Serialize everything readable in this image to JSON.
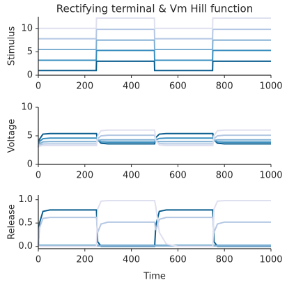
{
  "chart_data": [
    {
      "type": "line",
      "title": "Rectifying terminal & Vm Hill function",
      "ylabel": "Stimulus",
      "x": [
        0,
        5,
        20,
        50,
        100,
        249,
        250,
        255,
        270,
        300,
        350,
        499,
        500,
        505,
        520,
        550,
        600,
        749,
        750,
        755,
        770,
        800,
        850,
        1000
      ],
      "xlim": [
        0,
        1000
      ],
      "xticks": [
        0,
        200,
        400,
        600,
        800,
        1000
      ],
      "ylim": [
        0,
        12.5
      ],
      "yticks": [
        0,
        5,
        10
      ],
      "series": [
        {
          "color": "#0a5d8f",
          "values": [
            1,
            1,
            1,
            1,
            1,
            1,
            3,
            3,
            3,
            3,
            3,
            3,
            1,
            1,
            1,
            1,
            1,
            1,
            3,
            3,
            3,
            3,
            3,
            3
          ]
        },
        {
          "color": "#3a8fc0",
          "values": [
            3.2,
            3.2,
            3.2,
            3.2,
            3.2,
            3.2,
            5.3,
            5.3,
            5.3,
            5.3,
            5.3,
            5.3,
            3.2,
            3.2,
            3.2,
            3.2,
            3.2,
            3.2,
            5.3,
            5.3,
            5.3,
            5.3,
            5.3,
            5.3
          ]
        },
        {
          "color": "#7fafd3",
          "values": [
            5.5,
            5.5,
            5.5,
            5.5,
            5.5,
            5.5,
            7.5,
            7.5,
            7.5,
            7.5,
            7.5,
            7.5,
            5.5,
            5.5,
            5.5,
            5.5,
            5.5,
            5.5,
            7.5,
            7.5,
            7.5,
            7.5,
            7.5,
            7.5
          ]
        },
        {
          "color": "#b4c7e3",
          "values": [
            7.8,
            7.8,
            7.8,
            7.8,
            7.8,
            7.8,
            9.8,
            9.8,
            9.8,
            9.8,
            9.8,
            9.8,
            7.8,
            7.8,
            7.8,
            7.8,
            7.8,
            7.8,
            9.8,
            9.8,
            9.8,
            9.8,
            9.8,
            9.8
          ]
        },
        {
          "color": "#dfe0ef",
          "values": [
            10,
            10,
            10,
            10,
            10,
            10,
            12.2,
            12.2,
            12.2,
            12.2,
            12.2,
            12.2,
            10,
            10,
            10,
            10,
            10,
            10,
            12.2,
            12.2,
            12.2,
            12.2,
            12.2,
            12.2
          ]
        }
      ]
    },
    {
      "type": "line",
      "ylabel": "Voltage",
      "x": [
        0,
        5,
        20,
        50,
        100,
        249,
        250,
        255,
        270,
        300,
        350,
        499,
        500,
        505,
        520,
        550,
        600,
        749,
        750,
        755,
        770,
        800,
        850,
        1000
      ],
      "xlim": [
        0,
        1000
      ],
      "xticks": [
        0,
        200,
        400,
        600,
        800,
        1000
      ],
      "ylim": [
        0,
        10
      ],
      "yticks": [
        0,
        5,
        10
      ],
      "series": [
        {
          "color": "#0a5d8f",
          "values": [
            3.0,
            4.4,
            5.3,
            5.4,
            5.4,
            5.4,
            5.4,
            4.3,
            3.7,
            3.6,
            3.6,
            3.6,
            3.6,
            4.7,
            5.3,
            5.4,
            5.4,
            5.4,
            5.4,
            4.3,
            3.7,
            3.6,
            3.6,
            3.6
          ]
        },
        {
          "color": "#3a8fc0",
          "values": [
            3.0,
            4.0,
            4.5,
            4.6,
            4.6,
            4.6,
            4.6,
            4.2,
            3.95,
            3.9,
            3.9,
            3.9,
            3.9,
            4.3,
            4.55,
            4.6,
            4.6,
            4.6,
            4.6,
            4.2,
            3.95,
            3.9,
            3.9,
            3.9
          ]
        },
        {
          "color": "#7fafd3",
          "values": [
            3.0,
            3.6,
            3.95,
            4.0,
            4.0,
            4.0,
            4.0,
            4.2,
            4.3,
            4.3,
            4.3,
            4.3,
            4.3,
            4.1,
            4.0,
            4.0,
            4.0,
            4.0,
            4.0,
            4.2,
            4.3,
            4.3,
            4.3,
            4.3
          ]
        },
        {
          "color": "#b4c7e3",
          "values": [
            3.0,
            3.4,
            3.58,
            3.6,
            3.6,
            3.6,
            3.6,
            4.5,
            5.0,
            5.1,
            5.1,
            5.1,
            5.1,
            4.1,
            3.65,
            3.6,
            3.6,
            3.6,
            3.6,
            4.5,
            5.0,
            5.1,
            5.1,
            5.1
          ]
        },
        {
          "color": "#dfe0ef",
          "values": [
            3.0,
            3.2,
            3.3,
            3.3,
            3.3,
            3.3,
            3.3,
            5.0,
            5.9,
            6.0,
            6.0,
            6.0,
            6.0,
            4.2,
            3.4,
            3.3,
            3.3,
            3.3,
            3.3,
            5.0,
            5.9,
            6.0,
            6.0,
            6.0
          ]
        }
      ]
    },
    {
      "type": "line",
      "ylabel": "Release",
      "xlabel": "Time",
      "x": [
        0,
        5,
        20,
        50,
        100,
        249,
        250,
        255,
        270,
        300,
        350,
        499,
        500,
        505,
        520,
        550,
        600,
        749,
        750,
        755,
        770,
        800,
        850,
        1000
      ],
      "xlim": [
        0,
        1000
      ],
      "xticks": [
        0,
        200,
        400,
        600,
        800,
        1000
      ],
      "ylim": [
        -0.05,
        1.1
      ],
      "yticks": [
        {
          "value": 0,
          "label": "0.0"
        },
        {
          "value": 0.5,
          "label": "0.5"
        },
        {
          "value": 1,
          "label": "1.0"
        }
      ],
      "series": [
        {
          "color": "#0a5d8f",
          "values": [
            0,
            0.5,
            0.75,
            0.78,
            0.78,
            0.78,
            0.78,
            0.1,
            0,
            0,
            0,
            0,
            0,
            0.45,
            0.75,
            0.78,
            0.78,
            0.78,
            0.78,
            0.1,
            0,
            0,
            0,
            0
          ]
        },
        {
          "color": "#3a8fc0",
          "values": [
            0,
            0.02,
            0.02,
            0.02,
            0.02,
            0.02,
            0.02,
            0.02,
            0.02,
            0.02,
            0.02,
            0.02,
            0.02,
            0.02,
            0.02,
            0.02,
            0.02,
            0.02,
            0.02,
            0.02,
            0.02,
            0.02,
            0.02,
            0.02
          ]
        },
        {
          "color": "#7fafd3",
          "values": [
            0,
            0.01,
            0.01,
            0.01,
            0.01,
            0.01,
            0.01,
            0.01,
            0.01,
            0.01,
            0.01,
            0.01,
            0.01,
            0.01,
            0.01,
            0.01,
            0.01,
            0.01,
            0.01,
            0.01,
            0.01,
            0.01,
            0.01,
            0.01
          ]
        },
        {
          "color": "#b4c7e3",
          "values": [
            0,
            0.4,
            0.6,
            0.62,
            0.62,
            0.62,
            0.62,
            0.3,
            0.48,
            0.52,
            0.52,
            0.52,
            0.52,
            0.35,
            0.58,
            0.62,
            0.62,
            0.62,
            0.62,
            0.3,
            0.48,
            0.52,
            0.52,
            0.52
          ]
        },
        {
          "color": "#dfe0ef",
          "values": [
            0,
            0,
            0,
            0,
            0,
            0,
            0,
            0.8,
            0.97,
            0.98,
            0.98,
            0.98,
            0.98,
            0.85,
            0.3,
            0.05,
            0,
            0,
            0,
            0.8,
            0.97,
            0.98,
            0.98,
            0.98
          ]
        }
      ]
    }
  ]
}
